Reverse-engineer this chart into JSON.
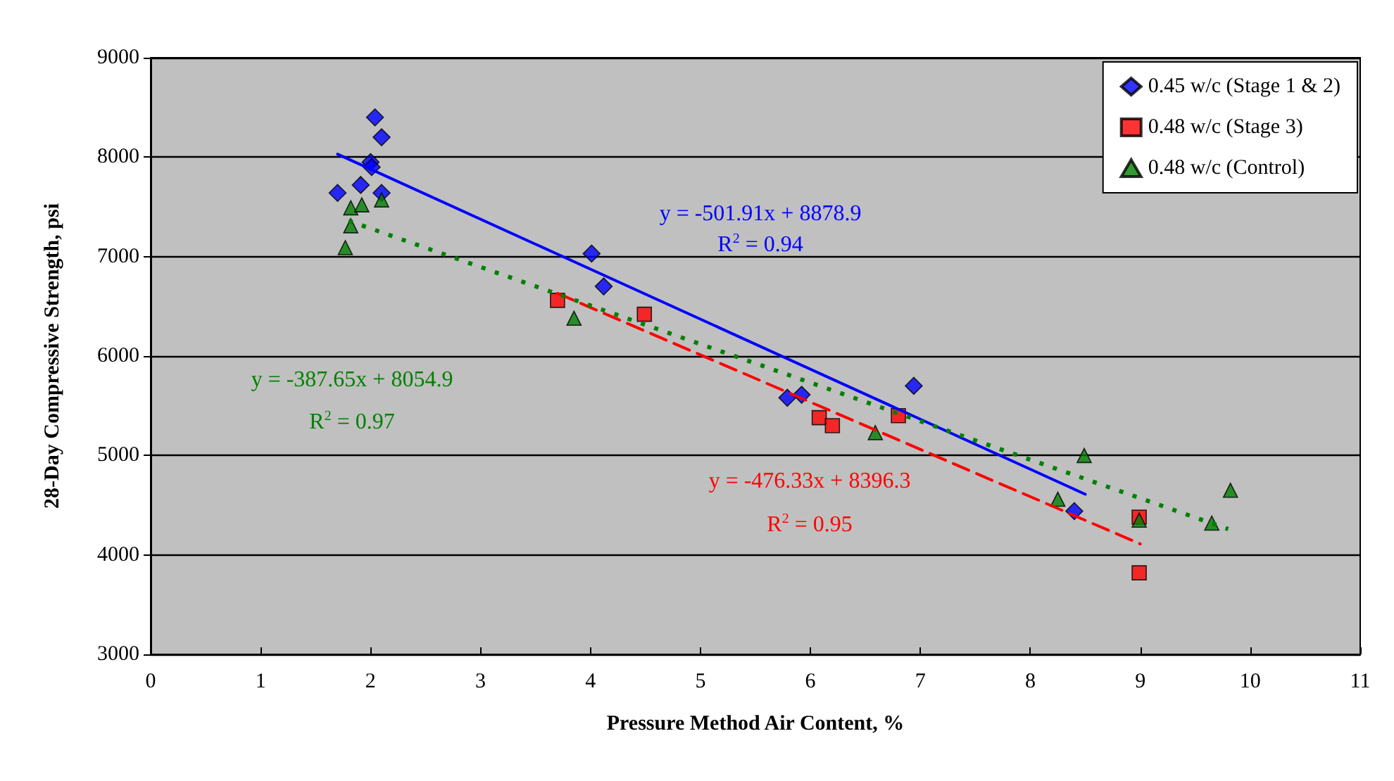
{
  "chart_data": {
    "type": "scatter",
    "xlabel": "Pressure Method Air Content, %",
    "ylabel": "28-Day Compressive Strength, psi",
    "xlim": [
      0,
      11
    ],
    "xticks": [
      0,
      1,
      2,
      3,
      4,
      5,
      6,
      7,
      8,
      9,
      10,
      11
    ],
    "ylim": [
      3000,
      9000
    ],
    "yticks": [
      3000,
      4000,
      5000,
      6000,
      7000,
      8000,
      9000
    ],
    "grid": "y",
    "legend": "top right",
    "series": [
      {
        "name": "0.45 w/c (Stage 1 & 2)",
        "color": "#0000ff",
        "marker": "diamond",
        "x": [
          1.7,
          2.04,
          2.1,
          2.0,
          2.01,
          1.91,
          2.1,
          4.01,
          4.12,
          5.79,
          5.92,
          6.94,
          8.4
        ],
        "values": [
          7640,
          8400,
          8200,
          7950,
          7900,
          7720,
          7640,
          7030,
          6700,
          5580,
          5610,
          5700,
          4440
        ]
      },
      {
        "name": "0.48 w/c (Stage 3)",
        "color": "#ff0000",
        "marker": "square",
        "x": [
          3.7,
          4.49,
          6.08,
          6.2,
          6.8,
          8.99,
          8.99
        ],
        "values": [
          6560,
          6420,
          5380,
          5300,
          5400,
          4380,
          3820
        ]
      },
      {
        "name": "0.48 w/c (Control)",
        "color": "#008000",
        "marker": "triangle",
        "x": [
          1.77,
          1.82,
          1.82,
          1.92,
          2.1,
          3.85,
          6.59,
          8.49,
          8.25,
          8.99,
          9.82,
          9.65
        ],
        "values": [
          7090,
          7310,
          7490,
          7520,
          7570,
          6380,
          5230,
          5000,
          4560,
          4350,
          4650,
          4320
        ]
      },
      {
        "type": "line",
        "color": "#0000ff",
        "line_style": "solid",
        "marker": "none",
        "x": [
          1.7,
          8.5
        ],
        "values": [
          8030,
          4610
        ]
      },
      {
        "type": "line",
        "color": "#ff0000",
        "line_style": "dashed",
        "marker": "none",
        "x": [
          3.7,
          9.0
        ],
        "values": [
          6630,
          4110
        ]
      },
      {
        "type": "line",
        "color": "#008000",
        "line_style": "dotted",
        "marker": "none",
        "x": [
          1.8,
          9.8
        ],
        "values": [
          7360,
          4260
        ]
      }
    ],
    "annotations": [
      "y = -501.91x + 8878.9",
      "R$^{2}$ = 0.94",
      "y = -476.33x + 8396.3",
      "R$^{2}$ = 0.95",
      "y = -387.65x + 8054.9",
      "R$^{2}$ = 0.97"
    ]
  }
}
